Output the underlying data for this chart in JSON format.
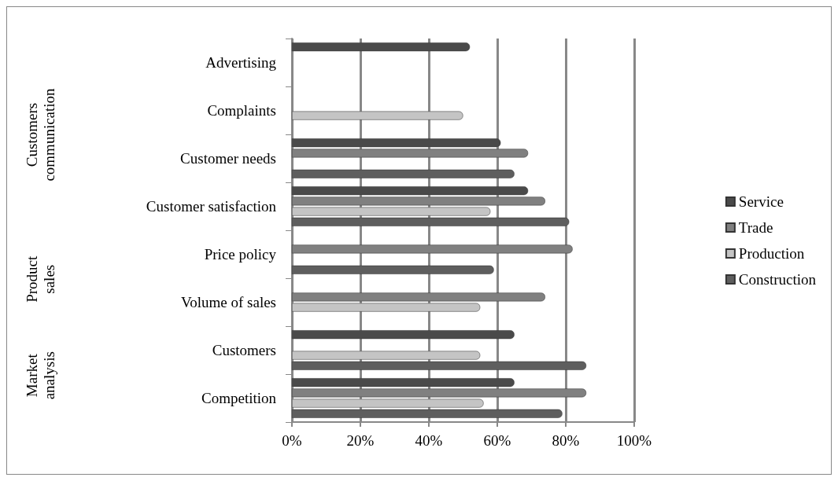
{
  "chart_data": {
    "type": "bar",
    "orientation": "horizontal",
    "categories": [
      "Advertising",
      "Complaints",
      "Customer needs",
      "Customer satisfaction",
      "Price policy",
      "Volume of sales",
      "Customers",
      "Competition"
    ],
    "series": [
      {
        "name": "Service",
        "color": "#4a4a4a",
        "values": [
          52,
          null,
          61,
          69,
          null,
          null,
          65,
          65
        ]
      },
      {
        "name": "Trade",
        "color": "#808080",
        "values": [
          null,
          null,
          69,
          74,
          82,
          74,
          null,
          86
        ]
      },
      {
        "name": "Production",
        "color": "#c4c4c4",
        "values": [
          null,
          50,
          null,
          58,
          null,
          55,
          55,
          56
        ]
      },
      {
        "name": "Construction",
        "color": "#5e5e5e",
        "values": [
          null,
          null,
          65,
          81,
          59,
          null,
          86,
          79
        ]
      }
    ],
    "xlim": [
      0,
      100
    ],
    "xticks": [
      {
        "value": 0,
        "label": "0%"
      },
      {
        "value": 20,
        "label": "20%"
      },
      {
        "value": 40,
        "label": "40%"
      },
      {
        "value": 60,
        "label": "60%"
      },
      {
        "value": 80,
        "label": "80%"
      },
      {
        "value": 100,
        "label": "100%"
      }
    ],
    "annotations": [
      "Customers communication",
      "Product sales",
      "Market analysis"
    ],
    "grid": "x",
    "legend": "right"
  }
}
